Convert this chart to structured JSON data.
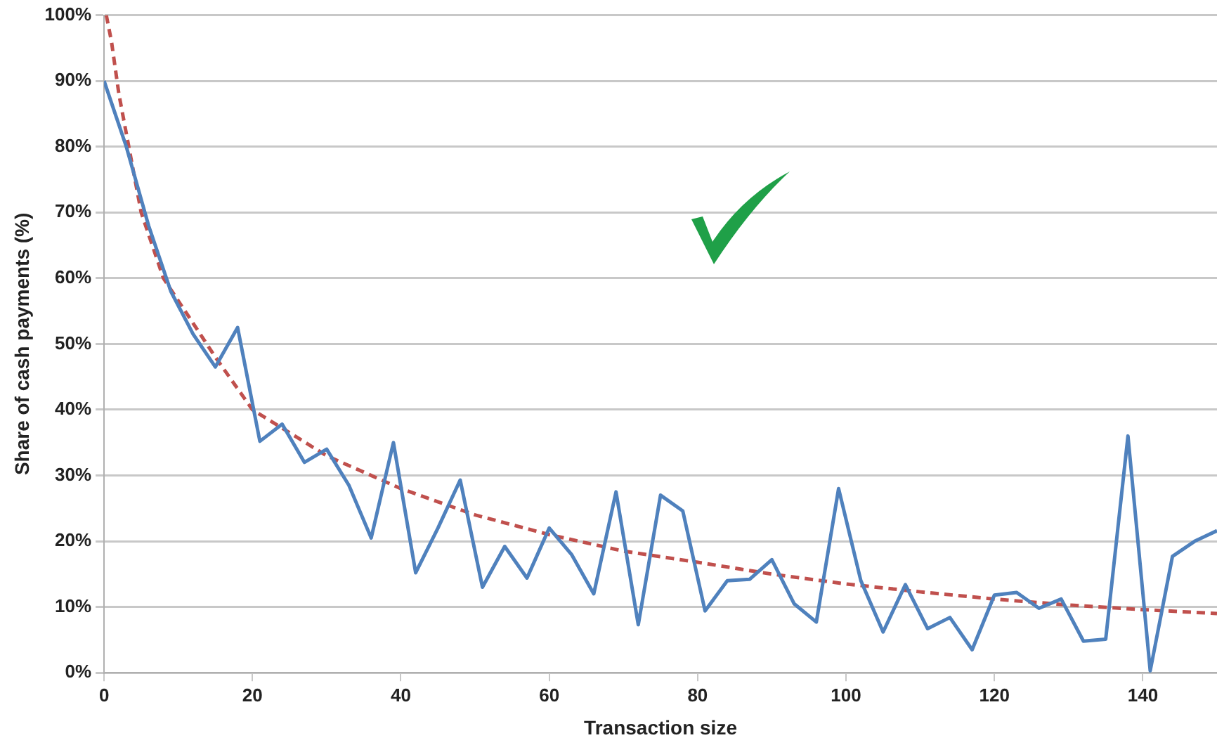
{
  "chart_data": {
    "type": "line",
    "xlabel": "Transaction size",
    "ylabel": "Share of cash payments (%)",
    "xlim": [
      0,
      150
    ],
    "xticks": [
      0,
      20,
      40,
      60,
      80,
      100,
      120,
      140
    ],
    "ylim": [
      0,
      100
    ],
    "yticks": [
      {
        "value": 0,
        "label": "0%"
      },
      {
        "value": 10,
        "label": "10%"
      },
      {
        "value": 20,
        "label": "20%"
      },
      {
        "value": 30,
        "label": "30%"
      },
      {
        "value": 40,
        "label": "40%"
      },
      {
        "value": 50,
        "label": "50%"
      },
      {
        "value": 60,
        "label": "60%"
      },
      {
        "value": 70,
        "label": "70%"
      },
      {
        "value": 80,
        "label": "80%"
      },
      {
        "value": 90,
        "label": "90%"
      },
      {
        "value": 100,
        "label": "100%"
      }
    ],
    "grid": "y",
    "legend": false,
    "marker": "none",
    "series": [
      {
        "type": "line",
        "color": "#4f81bd",
        "line_style": "solid",
        "x": [
          0,
          3,
          6,
          9,
          12,
          15,
          18,
          21,
          24,
          27,
          30,
          33,
          36,
          39,
          42,
          45,
          48,
          51,
          54,
          57,
          60,
          63,
          66,
          69,
          72,
          75,
          78,
          81,
          84,
          87,
          90,
          93,
          96,
          99,
          102,
          105,
          108,
          111,
          114,
          117,
          120,
          123,
          126,
          129,
          132,
          135,
          138,
          141,
          144,
          147,
          150
        ],
        "values": [
          90,
          80,
          68,
          58,
          51.5,
          46.5,
          52.5,
          35.2,
          37.8,
          32,
          34,
          28.5,
          20.5,
          35,
          15.2,
          22,
          29.3,
          13,
          19.2,
          14.4,
          22,
          18,
          12,
          27.5,
          7.3,
          27,
          24.6,
          9.4,
          14,
          14.2,
          17.2,
          10.5,
          7.7,
          28,
          14,
          6.2,
          13.4,
          6.7,
          8.4,
          3.5,
          11.8,
          12.2,
          9.8,
          11.2,
          4.8,
          5.1,
          36,
          0.3,
          17.7,
          20,
          21.6
        ]
      },
      {
        "type": "line",
        "color": "#c0504d",
        "line_style": "dashed",
        "x": [
          0.3,
          1,
          2,
          5,
          8,
          15,
          20,
          30,
          40,
          50,
          60,
          70,
          80,
          90,
          100,
          110,
          120,
          130,
          140,
          150
        ],
        "values": [
          100,
          96,
          88,
          70,
          60,
          48,
          40,
          33,
          28,
          24,
          21,
          18.5,
          16.8,
          15,
          13.5,
          12.3,
          11.2,
          10.3,
          9.6,
          9
        ]
      }
    ]
  }
}
